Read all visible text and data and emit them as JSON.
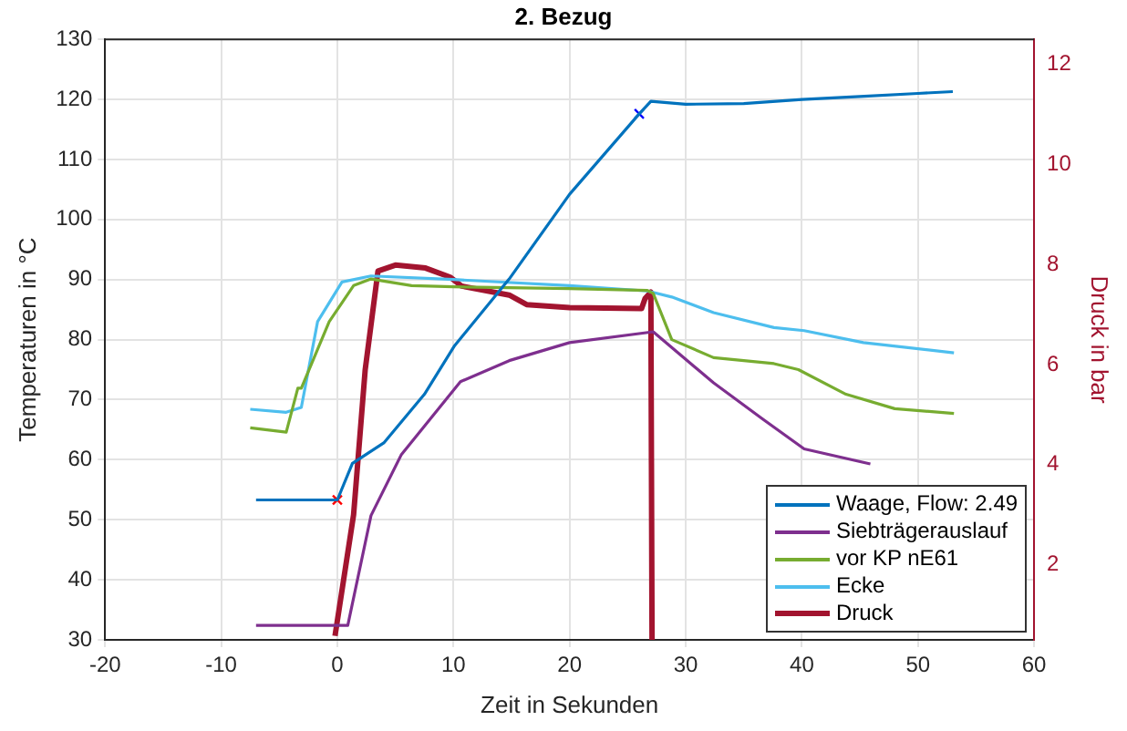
{
  "chart_data": {
    "type": "line",
    "title": "2. Bezug",
    "xlabel": "Zeit in Sekunden",
    "ylabel": "Temperaturen in °C",
    "y2label": "Druck in bar",
    "xlim": [
      -20,
      60
    ],
    "xticks": [
      -20,
      -10,
      0,
      10,
      20,
      30,
      40,
      50,
      60
    ],
    "ylim": [
      30,
      130
    ],
    "yticks": [
      30,
      40,
      50,
      60,
      70,
      80,
      90,
      100,
      110,
      120,
      130
    ],
    "y2lim": [
      0.5,
      12.5
    ],
    "y2ticks": [
      2,
      4,
      6,
      8,
      10,
      12
    ],
    "grid": true,
    "legend": "bottom right",
    "marker": "none",
    "line_style": "solid",
    "series": [
      {
        "name": "Waage, Flow: 2.49",
        "color": "#0072bd",
        "x": [
          -7,
          0,
          1.3,
          4,
          7.5,
          10.1,
          14.8,
          20,
          26,
          27,
          30,
          35,
          40,
          45,
          50,
          53
        ],
        "values": [
          53.3,
          53.3,
          59.4,
          62.8,
          70.9,
          79,
          90.1,
          104.2,
          117.6,
          119.7,
          119.2,
          119.3,
          120,
          120.5,
          121,
          121.3
        ]
      },
      {
        "name": "Siebträgerauslauf",
        "color": "#7e2f8e",
        "x": [
          -7,
          0.9,
          2.9,
          5.5,
          10.6,
          14.8,
          20,
          27.2,
          32.4,
          36.6,
          40.2,
          45.9
        ],
        "values": [
          32.4,
          32.4,
          50.7,
          60.8,
          73,
          76.5,
          79.5,
          81.3,
          72.8,
          66.8,
          61.8,
          59.3
        ]
      },
      {
        "name": "vor KP nE61",
        "color": "#77ac30",
        "x": [
          -7.5,
          -4.4,
          -3.4,
          -3.1,
          -0.7,
          1.4,
          2.9,
          6.4,
          10,
          20,
          26.7,
          27.2,
          28.8,
          32.4,
          37.6,
          39.7,
          43.8,
          48,
          53.1
        ],
        "values": [
          65.3,
          64.6,
          71.9,
          71.9,
          83,
          89,
          90.1,
          89,
          88.8,
          88.5,
          88.2,
          87.7,
          80,
          77,
          76,
          75,
          70.9,
          68.5,
          67.7
        ]
      },
      {
        "name": "Ecke",
        "color": "#4dbeee",
        "x": [
          -7.5,
          -4.4,
          -3.1,
          -1.7,
          0.4,
          2.9,
          10,
          20,
          26.7,
          28.8,
          32.4,
          37.6,
          40.2,
          45.3,
          53.1
        ],
        "values": [
          68.4,
          67.9,
          68.7,
          83,
          89.6,
          90.6,
          90,
          89,
          88.1,
          87.1,
          84.5,
          82,
          81.5,
          79.5,
          77.8
        ]
      },
      {
        "name": "Druck",
        "color": "#a2142f",
        "axis": "y2",
        "x": [
          -0.2,
          1.4,
          2.4,
          3.5,
          5,
          7.6,
          9.7,
          10.7,
          14.8,
          16.3,
          20,
          26.2,
          26.5,
          27,
          27.1
        ],
        "values": [
          0.58,
          3,
          5.9,
          7.87,
          7.99,
          7.93,
          7.75,
          7.57,
          7.39,
          7.2,
          7.14,
          7.12,
          7.32,
          7.45,
          0.5
        ]
      },
      {
        "type": "scatter",
        "marker": "cross",
        "color": "#ff0000",
        "x": [
          0
        ],
        "values": [
          53.3
        ]
      },
      {
        "type": "scatter",
        "marker": "cross",
        "color": "#0000ff",
        "x": [
          26
        ],
        "values": [
          117.6
        ]
      }
    ]
  }
}
